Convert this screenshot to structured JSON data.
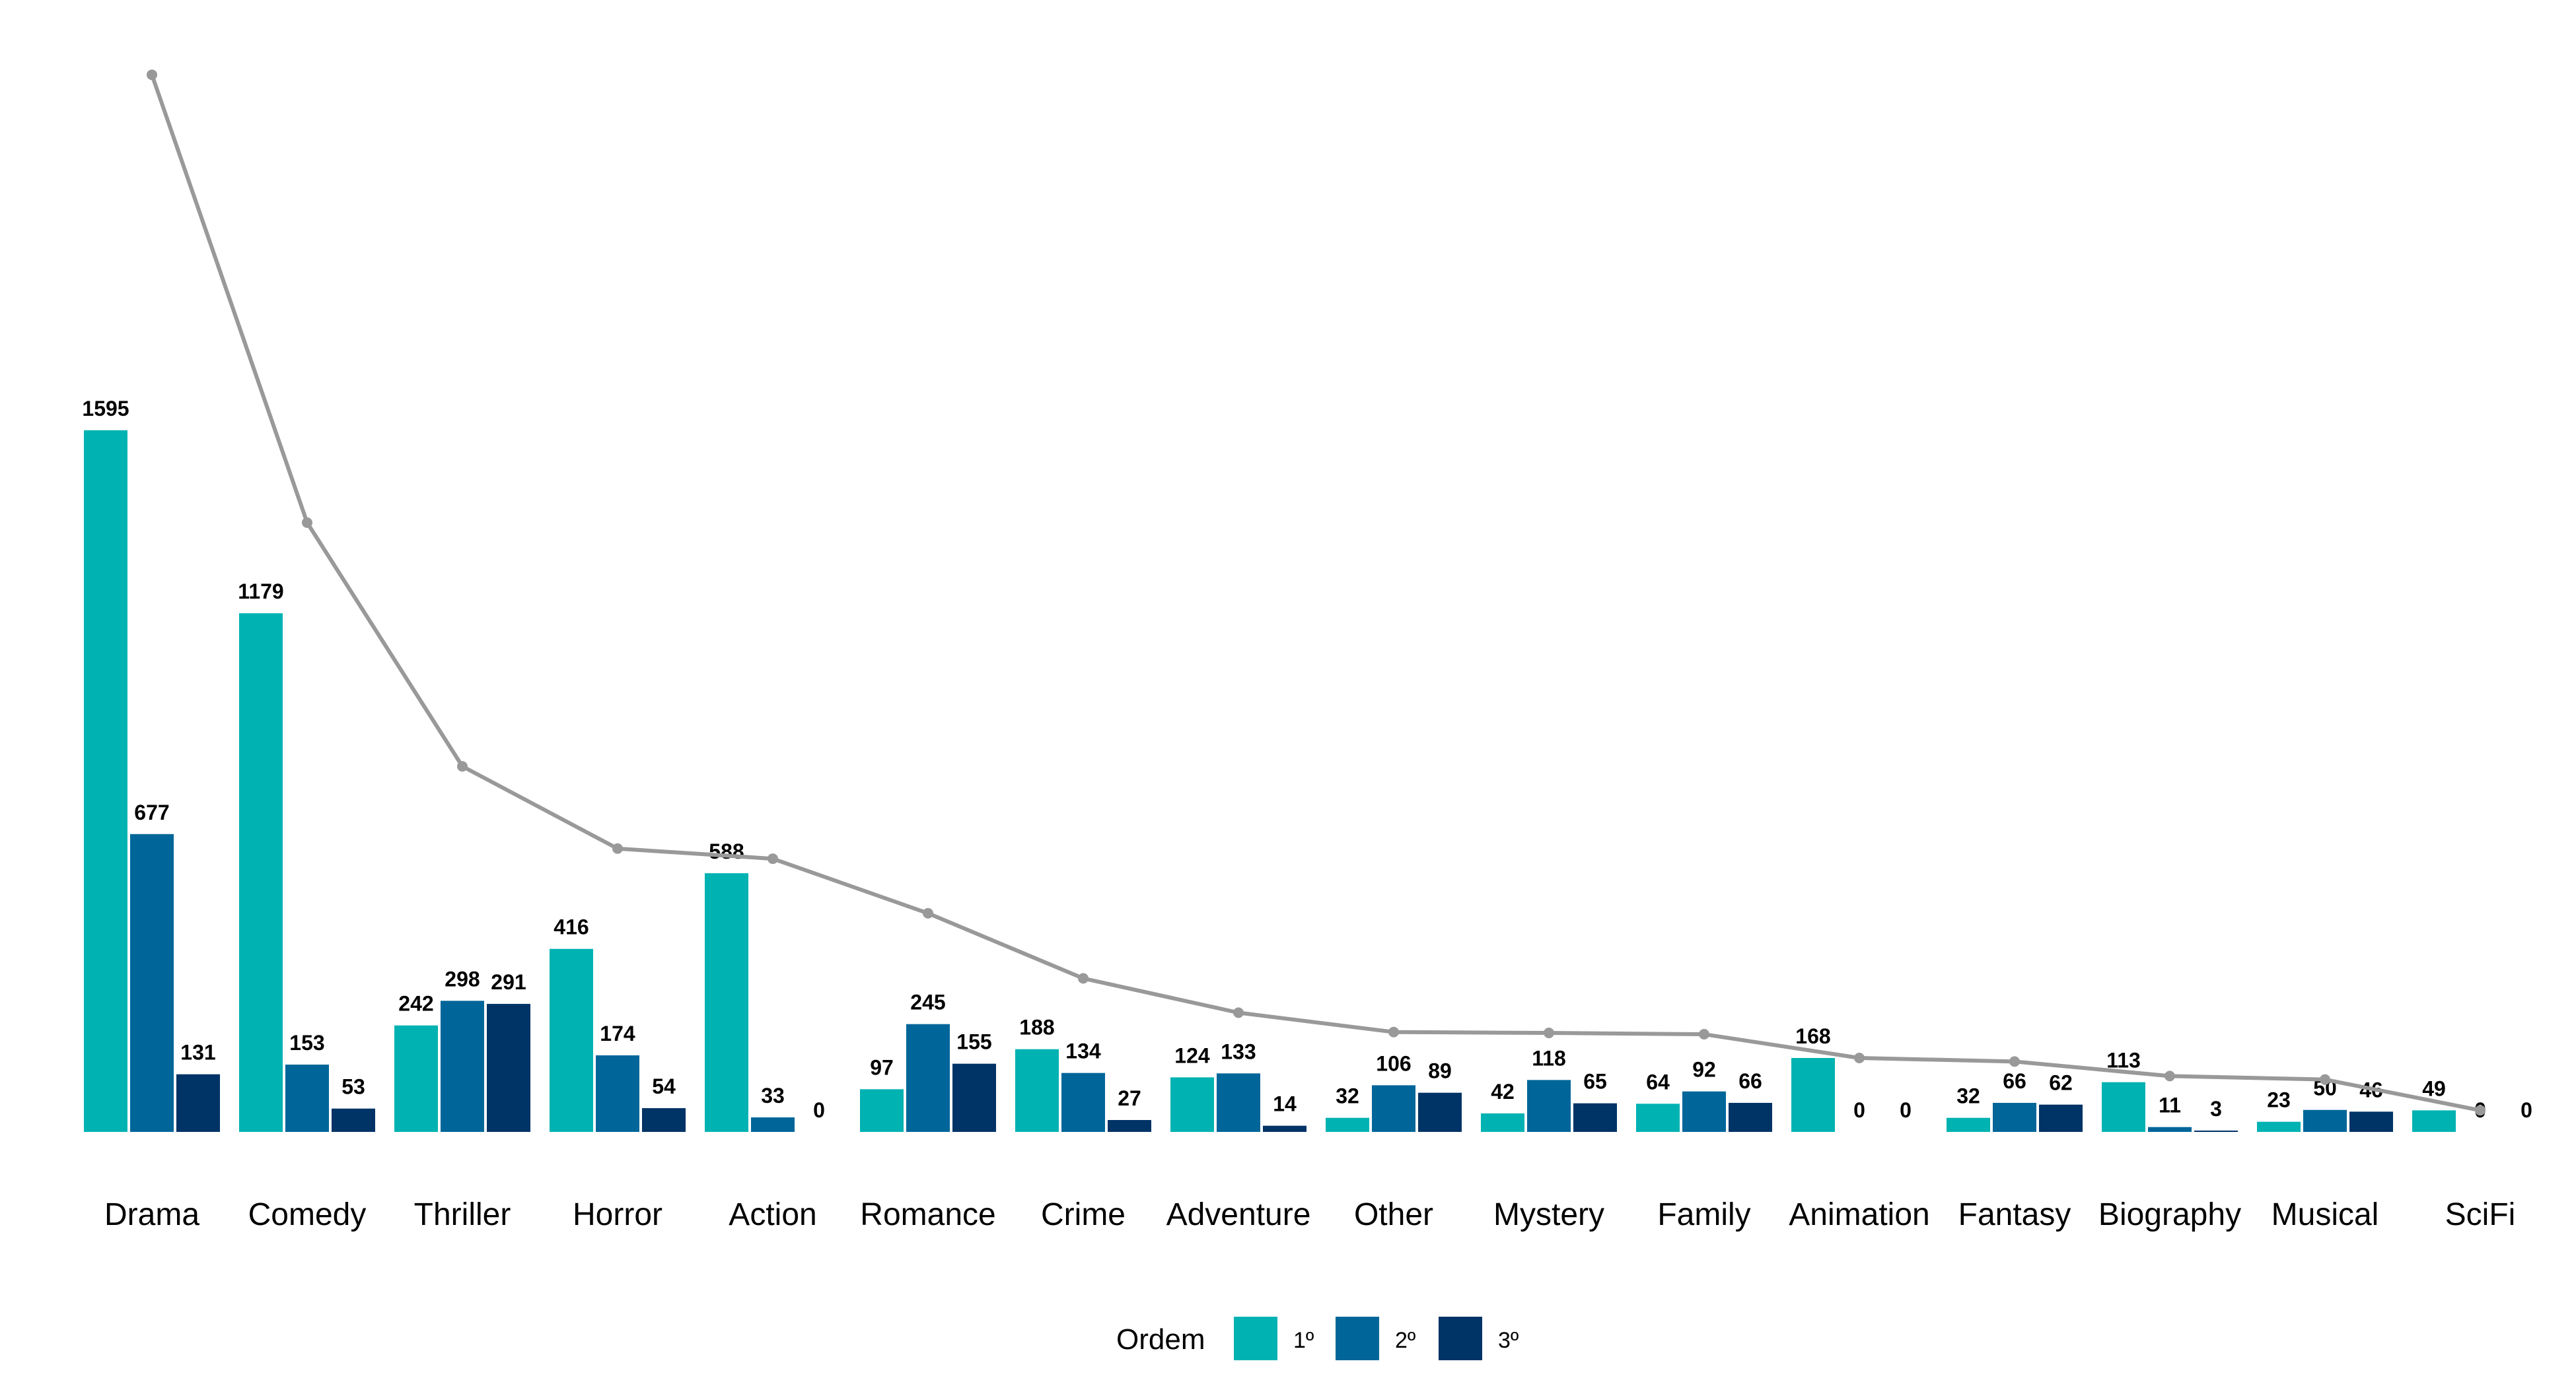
{
  "chart_data": {
    "type": "bar",
    "categories": [
      "Drama",
      "Comedy",
      "Thriller",
      "Horror",
      "Action",
      "Romance",
      "Crime",
      "Adventure",
      "Other",
      "Mystery",
      "Family",
      "Animation",
      "Fantasy",
      "Biography",
      "Musical",
      "SciFi"
    ],
    "series": [
      {
        "name": "1º",
        "color": "#00b2b2",
        "values": [
          1595,
          1179,
          242,
          416,
          588,
          97,
          188,
          124,
          32,
          42,
          64,
          168,
          32,
          113,
          23,
          49
        ]
      },
      {
        "name": "2º",
        "color": "#006699",
        "values": [
          677,
          153,
          298,
          174,
          33,
          245,
          134,
          133,
          106,
          118,
          92,
          0,
          66,
          11,
          50,
          0
        ]
      },
      {
        "name": "3º",
        "color": "#003366",
        "values": [
          131,
          53,
          291,
          54,
          0,
          155,
          27,
          14,
          89,
          65,
          66,
          0,
          62,
          3,
          46,
          0
        ]
      }
    ],
    "line": {
      "color": "#999999",
      "values": [
        2403,
        1385,
        831,
        644,
        621,
        497,
        349,
        271,
        227,
        225,
        222,
        168,
        160,
        127,
        119,
        49
      ]
    },
    "ylim": [
      0,
      2420
    ],
    "legend": {
      "title": "Ordem",
      "position": "bottom"
    },
    "grid": false
  }
}
